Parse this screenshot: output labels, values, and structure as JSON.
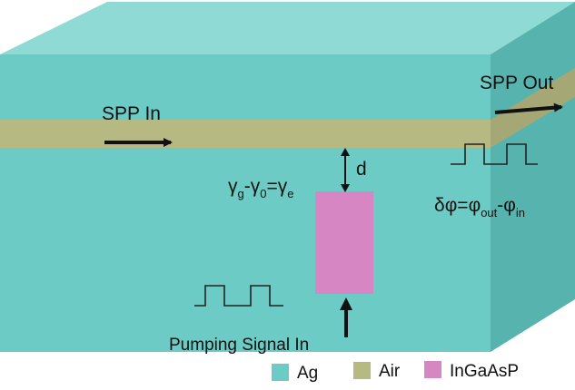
{
  "labels": {
    "spp_in": "SPP In",
    "spp_out": "SPP Out",
    "distance": "d",
    "pumping": "Pumping Signal In",
    "gain_eq": {
      "g1": "γ",
      "s1": "g",
      "op1": "-",
      "g2": "γ",
      "s2": "0",
      "op2": "=",
      "g3": "γ",
      "s3": "e"
    },
    "phase_eq": {
      "lead": "δφ=φ",
      "s1": "out",
      "mid": "-φ",
      "s2": "in"
    }
  },
  "legend": [
    {
      "label": "Ag",
      "color": "#6ccbc4"
    },
    {
      "label": "Air",
      "color": "#b7b982"
    },
    {
      "label": "InGaAsP",
      "color": "#d686c3"
    }
  ],
  "colors": {
    "ag_front": "#6ccbc4",
    "ag_top": "#8fdad5",
    "ag_side": "#57b3ad",
    "air": "#b7b982",
    "ingaasp": "#d686c3",
    "arrow": "#111111",
    "edge": "#3f8f8a"
  },
  "icons": [
    "right-arrow-icon",
    "double-arrow-icon",
    "up-arrow-icon",
    "square-pulse-icon"
  ]
}
